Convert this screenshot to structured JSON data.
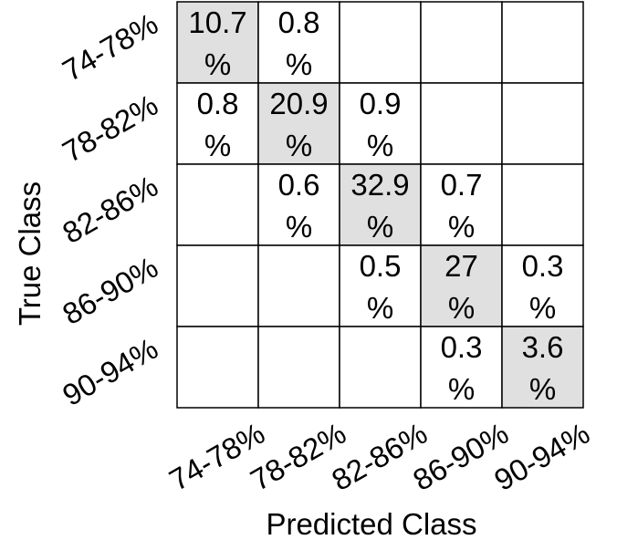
{
  "chart_data": {
    "type": "heatmap",
    "title": "",
    "xlabel": "Predicted Class",
    "ylabel": "True Class",
    "x_categories": [
      "74-78%",
      "78-82%",
      "82-86%",
      "86-90%",
      "90-94%"
    ],
    "y_categories": [
      "74-78%",
      "78-82%",
      "82-86%",
      "86-90%",
      "90-94%"
    ],
    "value_suffix": "%",
    "highlight_color": "#e0e0e0",
    "values": [
      [
        10.7,
        0.8,
        null,
        null,
        null
      ],
      [
        0.8,
        20.9,
        0.9,
        null,
        null
      ],
      [
        null,
        0.6,
        32.9,
        0.7,
        null
      ],
      [
        null,
        null,
        0.5,
        27,
        0.3
      ],
      [
        null,
        null,
        null,
        0.3,
        3.6
      ]
    ]
  }
}
